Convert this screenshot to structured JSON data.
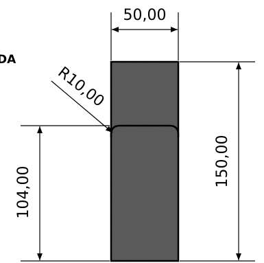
{
  "partial_label": "DA",
  "dimensions": {
    "width": "50,00",
    "height_total": "150,00",
    "height_lower": "104,00",
    "radius": "R10,00"
  },
  "colors": {
    "part_fill": "#5e5e5e",
    "line": "#000000",
    "background": "#ffffff"
  }
}
